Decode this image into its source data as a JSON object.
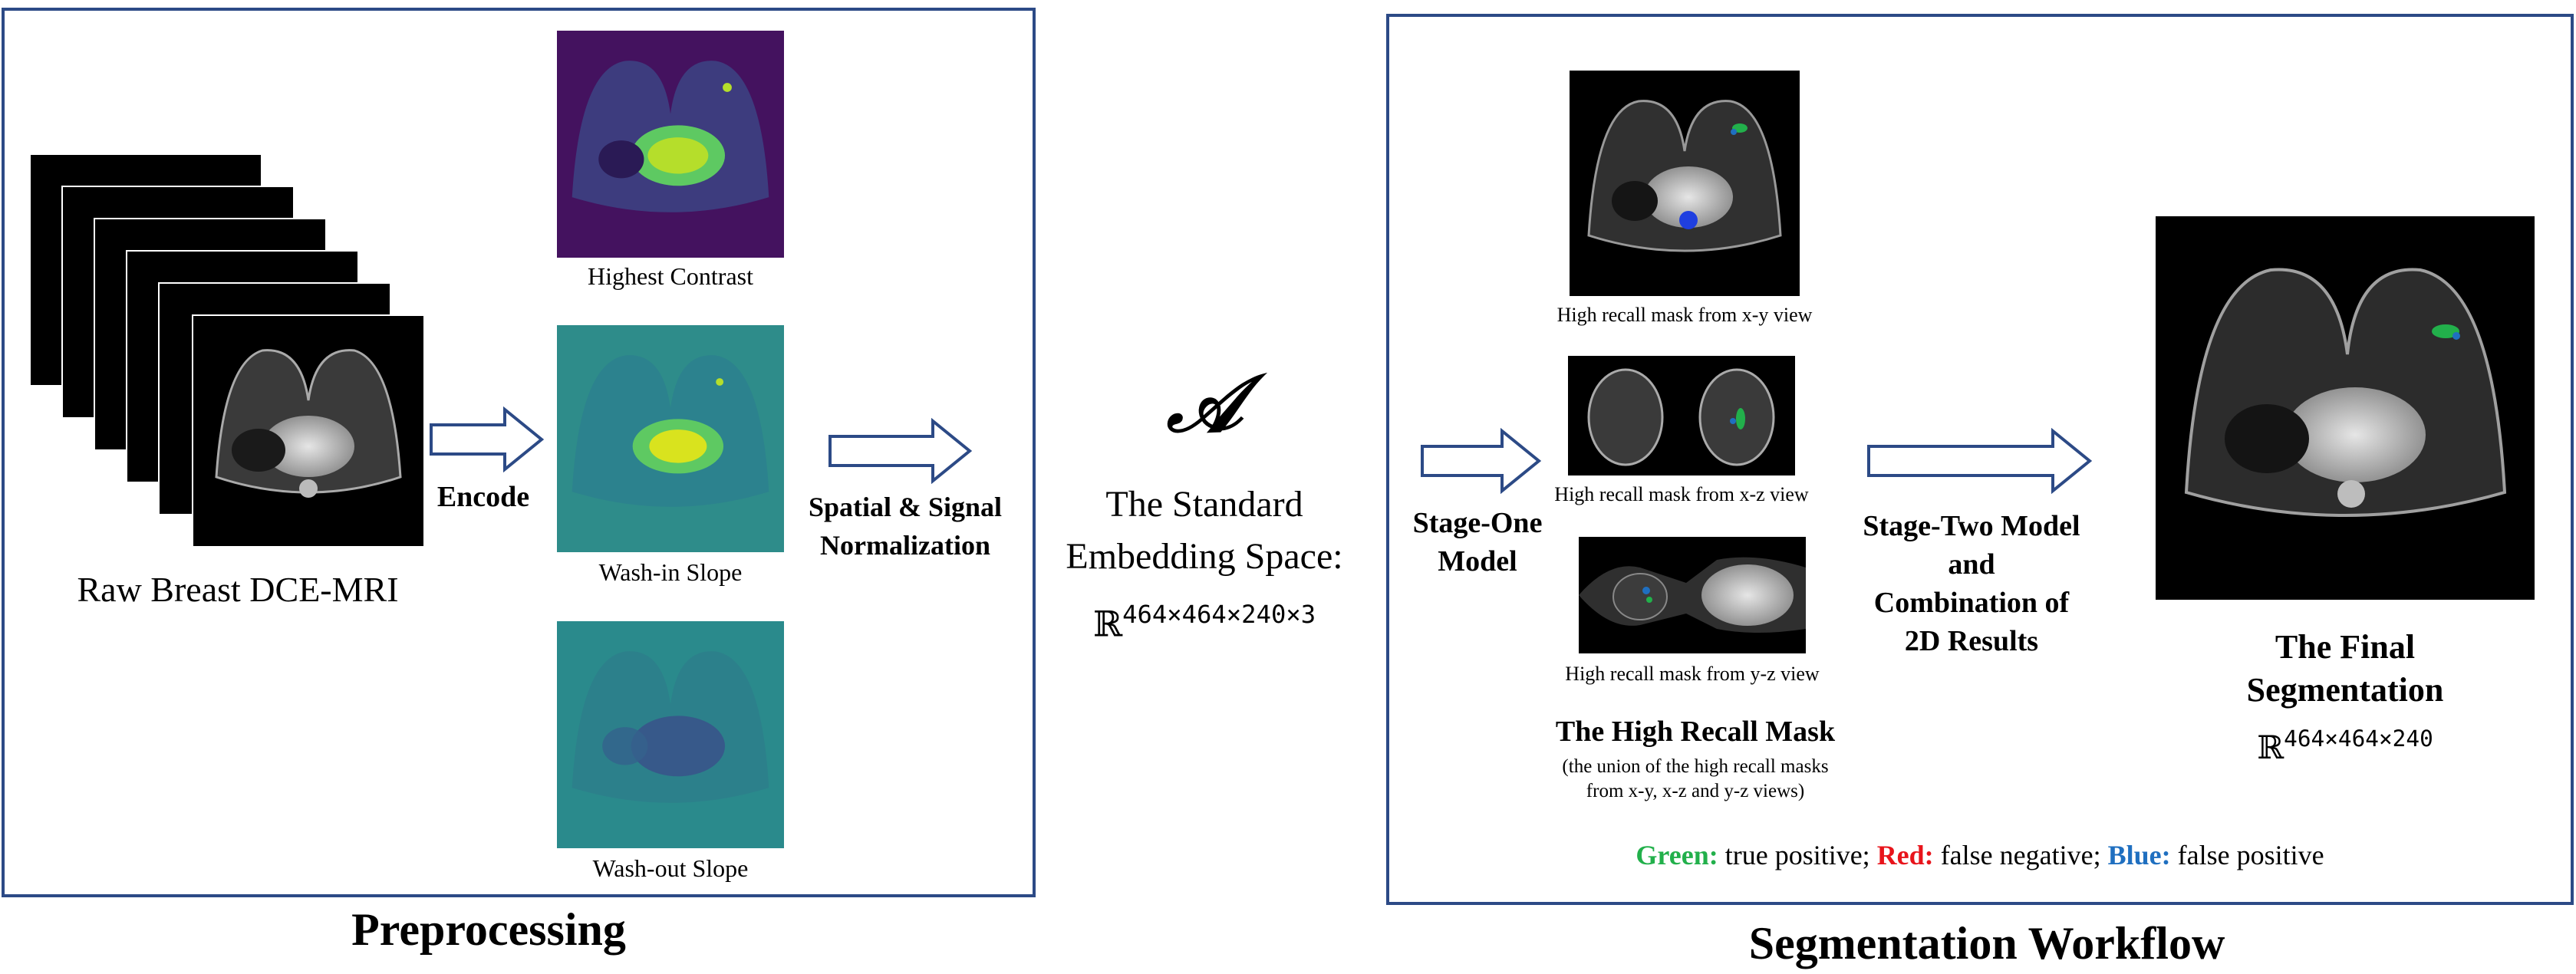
{
  "preprocessing": {
    "section_title": "Preprocessing",
    "input_label": "Raw Breast DCE-MRI",
    "encode_label": "Encode",
    "norm_label_1": "Spatial & Signal",
    "norm_label_2": "Normalization",
    "maps": [
      {
        "label": "Highest Contrast",
        "colormap": "viridis-purple"
      },
      {
        "label": "Wash-in Slope",
        "colormap": "viridis-teal"
      },
      {
        "label": "Wash-out Slope",
        "colormap": "viridis-teal"
      }
    ]
  },
  "embedding": {
    "symbol": "𝒜",
    "line1": "The Standard",
    "line2": "Embedding Space:",
    "space_base": "ℝ",
    "space_dims": "464×464×240×3"
  },
  "workflow": {
    "section_title": "Segmentation Workflow",
    "stage_one_1": "Stage-One",
    "stage_one_2": "Model",
    "views": [
      {
        "label": "High recall mask from x-y view"
      },
      {
        "label": "High recall mask from x-z view"
      },
      {
        "label": "High recall mask from y-z view"
      }
    ],
    "mask_title": "The High Recall Mask",
    "mask_desc_1": "(the union of the high recall masks",
    "mask_desc_2": "from x-y, x-z and y-z views)",
    "stage_two_1": "Stage-Two Model",
    "stage_two_2": "and",
    "stage_two_3": "Combination of",
    "stage_two_4": "2D Results",
    "final_1": "The Final",
    "final_2": "Segmentation",
    "final_base": "ℝ",
    "final_dims": "464×464×240",
    "legend": {
      "green_label": "Green:",
      "green_text": " true positive; ",
      "red_label": "Red:",
      "red_text": " false negative; ",
      "blue_label": "Blue:",
      "blue_text": " false positive",
      "green_color": "#22b04b",
      "red_color": "#e8141b",
      "blue_color": "#1f6fc0"
    }
  },
  "colors": {
    "panel_border": "#2c4a86",
    "arrow_stroke": "#2c4a86"
  }
}
